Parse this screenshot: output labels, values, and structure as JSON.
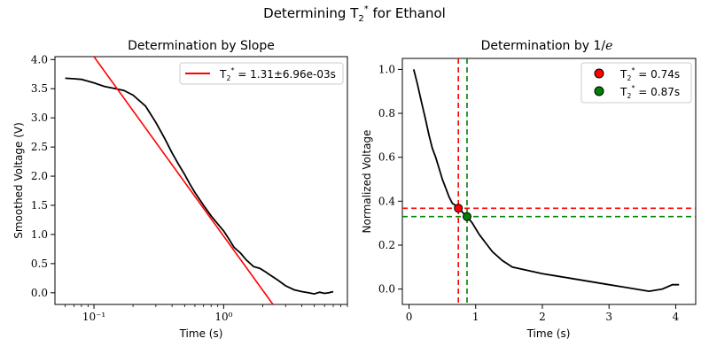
{
  "figure": {
    "suptitle_main": "Determining T",
    "suptitle_sub": "2",
    "suptitle_sup": "*",
    "suptitle_rest": " for Ethanol"
  },
  "chart_data": [
    {
      "type": "line",
      "title": "Determination by Slope",
      "xlabel": "Time (s)",
      "ylabel": "Smoothed Voltage (V)",
      "xscale": "log",
      "xlim": [
        0.05,
        9.0
      ],
      "ylim": [
        -0.2,
        4.05
      ],
      "xtick_labels": [
        "10⁻¹",
        "10⁰"
      ],
      "xticks": [
        0.1,
        1.0
      ],
      "ytick_labels": [
        "0.0",
        "0.5",
        "1.0",
        "1.5",
        "2.0",
        "2.5",
        "3.0",
        "3.5",
        "4.0"
      ],
      "yticks": [
        0,
        0.5,
        1,
        1.5,
        2,
        2.5,
        3,
        3.5,
        4
      ],
      "grid": false,
      "legend_position": "top-right",
      "series": [
        {
          "name": "data",
          "color": "#000000",
          "x": [
            0.06,
            0.07,
            0.08,
            0.09,
            0.1,
            0.12,
            0.14,
            0.17,
            0.2,
            0.25,
            0.3,
            0.35,
            0.4,
            0.45,
            0.5,
            0.55,
            0.6,
            0.7,
            0.8,
            0.9,
            1.0,
            1.1,
            1.2,
            1.35,
            1.5,
            1.7,
            1.9,
            2.1,
            2.3,
            2.6,
            3.0,
            3.5,
            4.0,
            4.5,
            5.0,
            5.5,
            6.0,
            6.5,
            7.0
          ],
          "y": [
            3.68,
            3.67,
            3.66,
            3.63,
            3.6,
            3.54,
            3.51,
            3.47,
            3.39,
            3.2,
            2.92,
            2.65,
            2.4,
            2.2,
            2.03,
            1.86,
            1.72,
            1.5,
            1.32,
            1.18,
            1.06,
            0.92,
            0.78,
            0.68,
            0.56,
            0.45,
            0.42,
            0.36,
            0.3,
            0.22,
            0.12,
            0.05,
            0.02,
            0.0,
            -0.02,
            0.01,
            -0.01,
            0.0,
            0.02
          ]
        },
        {
          "name": "T2* fit",
          "color": "#ff0000",
          "x": [
            0.1,
            2.4
          ],
          "y": [
            4.05,
            -0.2
          ]
        }
      ],
      "legend": {
        "label_main": "T",
        "label_sub": "2",
        "label_sup": "*",
        "label_rest": " = 1.31±6.96e-03s",
        "color": "#ff0000"
      }
    },
    {
      "type": "line",
      "title_main": "Determination by 1/",
      "title_italic": "e",
      "xlabel": "Time (s)",
      "ylabel": "Normalized Voltage",
      "xlim": [
        -0.1,
        4.3
      ],
      "ylim": [
        -0.07,
        1.05
      ],
      "xtick_labels": [
        "0",
        "1",
        "2",
        "3",
        "4"
      ],
      "xticks": [
        0,
        1,
        2,
        3,
        4
      ],
      "ytick_labels": [
        "0.0",
        "0.2",
        "0.4",
        "0.6",
        "0.8",
        "1.0"
      ],
      "yticks": [
        0,
        0.2,
        0.4,
        0.6,
        0.8,
        1.0
      ],
      "grid": false,
      "legend_position": "top-right",
      "series": [
        {
          "name": "data",
          "color": "#000000",
          "x": [
            0.07,
            0.12,
            0.18,
            0.25,
            0.3,
            0.35,
            0.4,
            0.45,
            0.5,
            0.55,
            0.6,
            0.65,
            0.7,
            0.75,
            0.8,
            0.87,
            0.95,
            1.05,
            1.15,
            1.25,
            1.4,
            1.55,
            1.7,
            1.85,
            2.0,
            2.2,
            2.4,
            2.6,
            2.8,
            3.0,
            3.2,
            3.4,
            3.6,
            3.8,
            3.95,
            4.05
          ],
          "y": [
            1.0,
            0.94,
            0.86,
            0.77,
            0.7,
            0.64,
            0.6,
            0.55,
            0.5,
            0.46,
            0.42,
            0.39,
            0.38,
            0.37,
            0.35,
            0.33,
            0.3,
            0.25,
            0.21,
            0.17,
            0.13,
            0.1,
            0.09,
            0.08,
            0.07,
            0.06,
            0.05,
            0.04,
            0.03,
            0.02,
            0.01,
            0.0,
            -0.01,
            0.0,
            0.02,
            0.02
          ]
        }
      ],
      "hlines": [
        {
          "y": 0.368,
          "color": "#ff0000"
        },
        {
          "y": 0.33,
          "color": "#008000"
        }
      ],
      "vlines": [
        {
          "x": 0.74,
          "color": "#ff0000"
        },
        {
          "x": 0.87,
          "color": "#008000"
        }
      ],
      "points": [
        {
          "x": 0.74,
          "y": 0.368,
          "color": "#ff0000"
        },
        {
          "x": 0.87,
          "y": 0.33,
          "color": "#008000"
        }
      ],
      "legend": [
        {
          "label_main": "T",
          "label_sub": "2",
          "label_sup": "*",
          "label_rest": " = 0.74s",
          "color": "#ff0000"
        },
        {
          "label_main": "T",
          "label_sub": "2",
          "label_sup": "*",
          "label_rest": " = 0.87s",
          "color": "#008000"
        }
      ]
    }
  ]
}
